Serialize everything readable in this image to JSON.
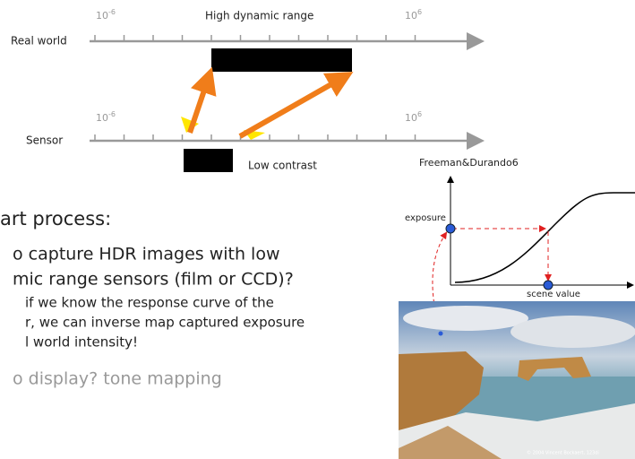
{
  "diagram": {
    "top_axis": {
      "label": "Real world",
      "title": "High dynamic range",
      "min_label": {
        "base": "10",
        "exp": "-6"
      },
      "max_label": {
        "base": "10",
        "exp": "6"
      }
    },
    "bottom_axis": {
      "label": "Sensor",
      "title": "Low contrast",
      "min_label": {
        "base": "10",
        "exp": "-6"
      },
      "max_label": {
        "base": "10",
        "exp": "6"
      }
    }
  },
  "bullets": {
    "heading": "art process:",
    "items": [
      "o capture HDR images with low",
      "mic range sensors (film or CCD)?"
    ],
    "sub_items": [
      "if we know the response curve of the",
      "r, we can inverse map captured exposure",
      "l world intensity!"
    ],
    "last": "o display? tone mapping"
  },
  "graph": {
    "credit": "Freeman&Durando6",
    "y_label": "exposure",
    "x_label": "scene value"
  },
  "photo": {
    "caption": "© 2004 Vincent Bockaert, 123di"
  }
}
